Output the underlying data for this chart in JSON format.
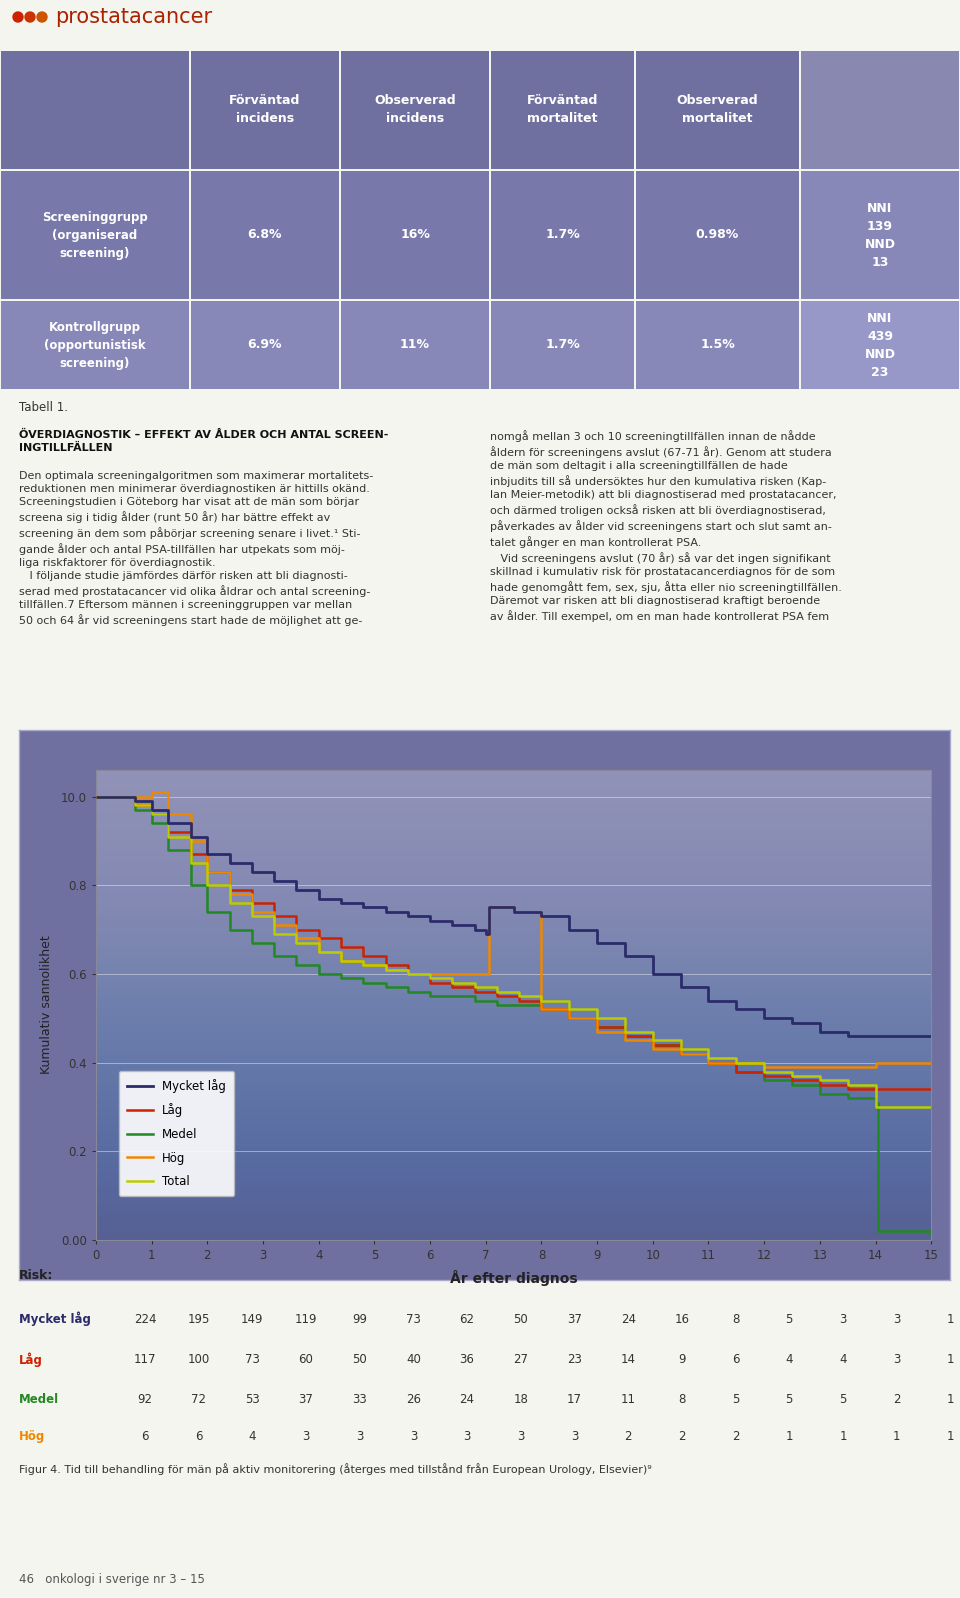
{
  "title": "prostatacancer",
  "dot_colors": [
    "#cc2200",
    "#cc3300",
    "#cc5500"
  ],
  "table_header_cols": [
    "",
    "Förväntad\nincidens",
    "Observerad\nincidens",
    "Förväntad\nmortalitet",
    "Observerad\nmortalitet",
    ""
  ],
  "table_row1_label": "Screeninggrupp\n(organiserad\nscreening)",
  "table_row1_values": [
    "6.8%",
    "16%",
    "1.7%",
    "0.98%",
    "NNI\n139\nNND\n13"
  ],
  "table_row2_label": "Kontrollgrupp\n(opportunistisk\nscreening)",
  "table_row2_values": [
    "6.9%",
    "11%",
    "1.7%",
    "1.5%",
    "NNI\n439\nNND\n23"
  ],
  "table_note": "Tabell 1.",
  "header_bg": "#7070a0",
  "row1_bg": "#7878aa",
  "row2_bg": "#8888b8",
  "ylabel": "Kumulativ sannolikhet",
  "xlabel": "År efter diagnos",
  "ytick_labels": [
    "0.00",
    "0.2",
    "0.4",
    "0.6",
    "0.8",
    "10.0"
  ],
  "line_colors": [
    "#2b2b6b",
    "#cc2200",
    "#228822",
    "#ee8800",
    "#bbcc00"
  ],
  "legend_labels": [
    "Mycket låg",
    "Låg",
    "Medel",
    "Hög",
    "Total"
  ],
  "mycket_lag": {
    "x": [
      0,
      0.3,
      0.7,
      1.0,
      1.3,
      1.7,
      2.0,
      2.4,
      2.8,
      3.2,
      3.6,
      4.0,
      4.4,
      4.8,
      5.2,
      5.6,
      6.0,
      6.4,
      6.8,
      7.0,
      7.05,
      7.5,
      8.0,
      8.5,
      9.0,
      9.5,
      10.0,
      10.5,
      11.0,
      11.5,
      12.0,
      12.5,
      13.0,
      13.5,
      14.0,
      15.0
    ],
    "y": [
      1.0,
      1.0,
      0.99,
      0.97,
      0.94,
      0.91,
      0.87,
      0.85,
      0.83,
      0.81,
      0.79,
      0.77,
      0.76,
      0.75,
      0.74,
      0.73,
      0.72,
      0.71,
      0.7,
      0.69,
      0.75,
      0.74,
      0.73,
      0.7,
      0.67,
      0.64,
      0.6,
      0.57,
      0.54,
      0.52,
      0.5,
      0.49,
      0.47,
      0.46,
      0.46,
      0.46
    ]
  },
  "lag": {
    "x": [
      0,
      0.3,
      0.7,
      1.0,
      1.3,
      1.7,
      2.0,
      2.4,
      2.8,
      3.2,
      3.6,
      4.0,
      4.4,
      4.8,
      5.2,
      5.6,
      6.0,
      6.4,
      6.8,
      7.2,
      7.6,
      8.0,
      8.5,
      9.0,
      9.5,
      10.0,
      10.5,
      11.0,
      11.5,
      12.0,
      12.5,
      13.0,
      13.5,
      14.0,
      15.0
    ],
    "y": [
      1.0,
      1.0,
      0.98,
      0.96,
      0.92,
      0.87,
      0.83,
      0.79,
      0.76,
      0.73,
      0.7,
      0.68,
      0.66,
      0.64,
      0.62,
      0.6,
      0.58,
      0.57,
      0.56,
      0.55,
      0.54,
      0.52,
      0.5,
      0.48,
      0.46,
      0.44,
      0.42,
      0.4,
      0.38,
      0.37,
      0.36,
      0.35,
      0.34,
      0.34,
      0.34
    ]
  },
  "medel": {
    "x": [
      0,
      0.3,
      0.7,
      1.0,
      1.3,
      1.7,
      2.0,
      2.4,
      2.8,
      3.2,
      3.6,
      4.0,
      4.4,
      4.8,
      5.2,
      5.6,
      6.0,
      6.4,
      6.8,
      7.2,
      7.6,
      8.0,
      8.5,
      9.0,
      9.5,
      10.0,
      10.5,
      11.0,
      11.5,
      12.0,
      12.5,
      13.0,
      13.5,
      14.0,
      14.05,
      15.0
    ],
    "y": [
      1.0,
      1.0,
      0.97,
      0.94,
      0.88,
      0.8,
      0.74,
      0.7,
      0.67,
      0.64,
      0.62,
      0.6,
      0.59,
      0.58,
      0.57,
      0.56,
      0.55,
      0.55,
      0.54,
      0.53,
      0.53,
      0.52,
      0.5,
      0.48,
      0.46,
      0.44,
      0.42,
      0.4,
      0.38,
      0.36,
      0.35,
      0.33,
      0.32,
      0.31,
      0.02,
      0.01
    ]
  },
  "hog": {
    "x": [
      0,
      0.3,
      0.7,
      1.0,
      1.05,
      1.3,
      1.7,
      2.0,
      2.4,
      2.8,
      3.2,
      3.6,
      4.0,
      4.4,
      4.8,
      5.2,
      5.6,
      6.0,
      6.4,
      6.8,
      7.0,
      7.05,
      7.5,
      8.0,
      8.5,
      9.0,
      9.5,
      10.0,
      10.5,
      11.0,
      11.5,
      12.0,
      12.5,
      13.0,
      13.5,
      14.0,
      15.0
    ],
    "y": [
      1.0,
      1.0,
      1.0,
      1.01,
      1.01,
      0.96,
      0.9,
      0.83,
      0.78,
      0.74,
      0.71,
      0.68,
      0.65,
      0.63,
      0.62,
      0.61,
      0.6,
      0.6,
      0.6,
      0.6,
      0.6,
      0.75,
      0.74,
      0.52,
      0.5,
      0.47,
      0.45,
      0.43,
      0.42,
      0.4,
      0.4,
      0.39,
      0.39,
      0.39,
      0.39,
      0.4,
      0.4
    ]
  },
  "total": {
    "x": [
      0,
      0.3,
      0.7,
      1.0,
      1.3,
      1.7,
      2.0,
      2.4,
      2.8,
      3.2,
      3.6,
      4.0,
      4.4,
      4.8,
      5.2,
      5.6,
      6.0,
      6.4,
      6.8,
      7.2,
      7.6,
      8.0,
      8.5,
      9.0,
      9.5,
      10.0,
      10.5,
      11.0,
      11.5,
      12.0,
      12.5,
      13.0,
      13.5,
      14.0,
      15.0
    ],
    "y": [
      1.0,
      1.0,
      0.98,
      0.96,
      0.91,
      0.85,
      0.8,
      0.76,
      0.73,
      0.69,
      0.67,
      0.65,
      0.63,
      0.62,
      0.61,
      0.6,
      0.59,
      0.58,
      0.57,
      0.56,
      0.55,
      0.54,
      0.52,
      0.5,
      0.47,
      0.45,
      0.43,
      0.41,
      0.4,
      0.38,
      0.37,
      0.36,
      0.35,
      0.3,
      0.3
    ]
  },
  "risk_rows": [
    {
      "label": "Mycket låg",
      "values": [
        224,
        195,
        149,
        119,
        99,
        73,
        62,
        50,
        37,
        24,
        16,
        8,
        5,
        3,
        3,
        1
      ]
    },
    {
      "label": "Låg",
      "values": [
        117,
        100,
        73,
        60,
        50,
        40,
        36,
        27,
        23,
        14,
        9,
        6,
        4,
        4,
        3,
        1
      ]
    },
    {
      "label": "Medel",
      "values": [
        92,
        72,
        53,
        37,
        33,
        26,
        24,
        18,
        17,
        11,
        8,
        5,
        5,
        5,
        2,
        1
      ]
    },
    {
      "label": "Hög",
      "values": [
        6,
        6,
        4,
        3,
        3,
        3,
        3,
        3,
        3,
        2,
        2,
        2,
        1,
        1,
        1,
        1
      ]
    }
  ],
  "fig_caption": "Figur 4. Tid till behandling för män på aktiv monitorering (återges med tillstånd från European Urology, Elsevier)⁹",
  "page_footer": "46   onkologi i sverige nr 3 – 15",
  "page_bg": "#f5f5f0",
  "chart_bg": "#7070a0"
}
